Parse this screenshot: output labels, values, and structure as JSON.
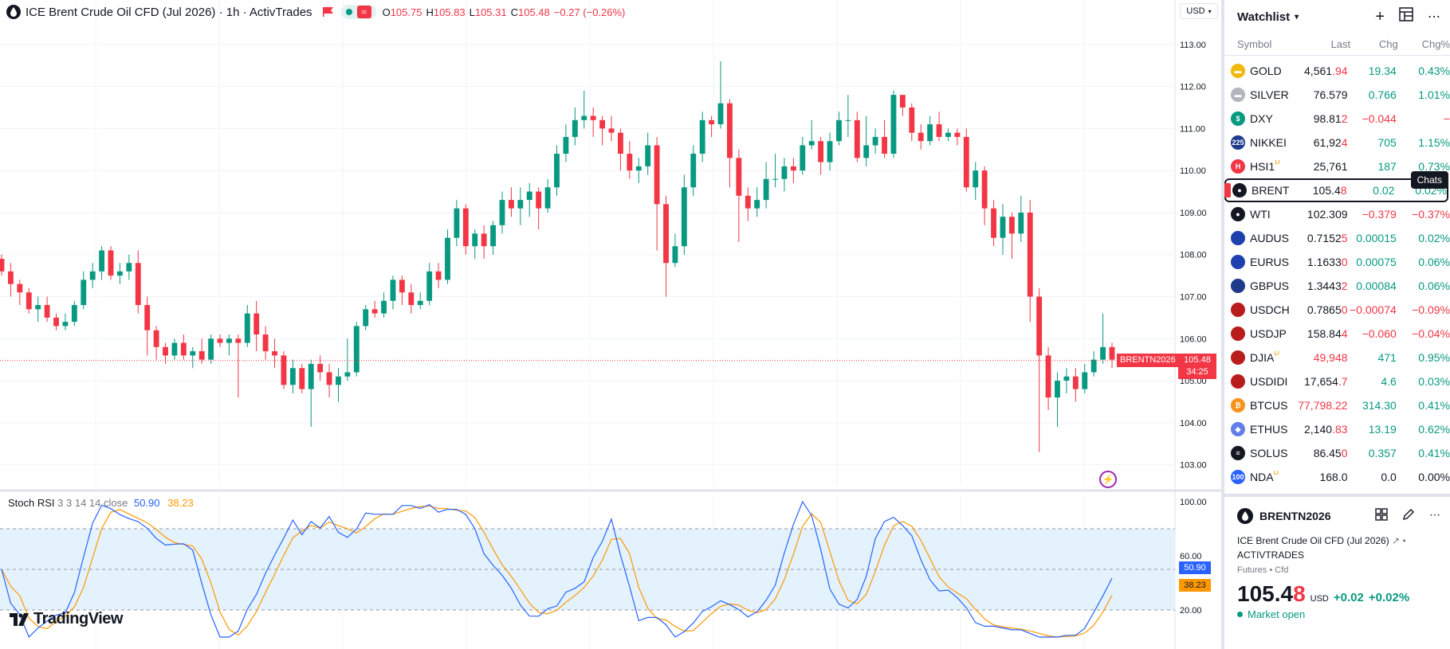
{
  "legend": {
    "title": "ICE Brent Crude Oil CFD (Jul 2026) · 1h · ActivTrades",
    "ohlc": [
      {
        "k": "O",
        "v": "105.75"
      },
      {
        "k": "H",
        "v": "105.83"
      },
      {
        "k": "L",
        "v": "105.31"
      },
      {
        "k": "C",
        "v": "105.48"
      }
    ],
    "change": "−0.27 (−0.26%)",
    "wave_glyph": "≈"
  },
  "currency": "USD",
  "price_axis": [
    "113.00",
    "112.00",
    "111.00",
    "110.00",
    "109.00",
    "108.00",
    "107.00",
    "106.00",
    "105.00",
    "104.00",
    "103.00"
  ],
  "indicator_axis": [
    "100.00",
    "60.00",
    "20.00"
  ],
  "price_tag": {
    "price": "105.48",
    "countdown": "34:25",
    "symbol": "BRENTN2026"
  },
  "indicator": {
    "name": "Stoch RSI",
    "params": "3 3 14 14 close",
    "k": "50.90",
    "d": "38.23"
  },
  "logo": "TradingView",
  "colors": {
    "up": "#089981",
    "down": "#f23645",
    "k_line": "#2962ff",
    "d_line": "#ff9800",
    "band": "#e3f2fd"
  },
  "watchlist": {
    "title": "Watchlist",
    "columns": {
      "symbol": "Symbol",
      "last": "Last",
      "chg": "Chg",
      "pct": "Chg%"
    },
    "tooltip": "Chats",
    "rows": [
      {
        "sym": "GOLD",
        "last_a": "4,561",
        "last_b": ".94",
        "chg": "19.34",
        "pct": "0.43%",
        "dir": "pos",
        "icon": "gold-icon",
        "icolor": "#f0b90b",
        "glyph": "▬"
      },
      {
        "sym": "SILVER",
        "last_a": "76.579",
        "last_b": "",
        "chg": "0.766",
        "pct": "1.01%",
        "dir": "pos",
        "icon": "silver-icon",
        "icolor": "#b2b5be",
        "glyph": "▬"
      },
      {
        "sym": "DXY",
        "last_a": "98.81",
        "last_b": "2",
        "chg": "−0.044",
        "pct": "−",
        "dir": "neg",
        "icon": "dollar-icon",
        "icolor": "#089981",
        "glyph": "$"
      },
      {
        "sym": "NIKKEI",
        "last_a": "61,92",
        "last_b": "4",
        "chg": "705",
        "pct": "1.15%",
        "dir": "pos",
        "icon": "nikkei-icon",
        "icolor": "#1e3a8a",
        "glyph": "225"
      },
      {
        "sym": "HSI1",
        "sup": "D",
        "last_a": "25,761",
        "last_b": "",
        "chg": "187",
        "pct": "0.73%",
        "dir": "pos",
        "icon": "hsi-icon",
        "icolor": "#f23645",
        "glyph": "H"
      },
      {
        "sym": "BRENT",
        "last_a": "105.4",
        "last_b": "8",
        "chg": "0.02",
        "pct": "0.02%",
        "dir": "pos",
        "icon": "oil-drop-icon",
        "icolor": "#131722",
        "glyph": "●",
        "selected": true
      },
      {
        "sym": "WTI",
        "last_a": "102.309",
        "last_b": "",
        "chg": "−0.379",
        "pct": "−0.37%",
        "dir": "neg",
        "icon": "oil-drop-icon",
        "icolor": "#131722",
        "glyph": "●"
      },
      {
        "sym": "AUDUS",
        "last_a": "0.7152",
        "last_b": "5",
        "chg": "0.00015",
        "pct": "0.02%",
        "dir": "pos",
        "icon": "au-flag-icon",
        "icolor": "#1e40af",
        "glyph": ""
      },
      {
        "sym": "EURUS",
        "last_a": "1.1633",
        "last_b": "0",
        "chg": "0.00075",
        "pct": "0.06%",
        "dir": "pos",
        "icon": "eu-flag-icon",
        "icolor": "#1e40af",
        "glyph": ""
      },
      {
        "sym": "GBPUS",
        "last_a": "1.3443",
        "last_b": "2",
        "chg": "0.00084",
        "pct": "0.06%",
        "dir": "pos",
        "icon": "gb-flag-icon",
        "icolor": "#1e3a8a",
        "glyph": ""
      },
      {
        "sym": "USDCH",
        "last_a": "0.7865",
        "last_b": "0",
        "chg": "−0.00074",
        "pct": "−0.09%",
        "dir": "neg",
        "icon": "us-flag-icon",
        "icolor": "#b91c1c",
        "glyph": ""
      },
      {
        "sym": "USDJP",
        "last_a": "158.84",
        "last_b": "4",
        "chg": "−0.060",
        "pct": "−0.04%",
        "dir": "neg",
        "icon": "us-flag-icon",
        "icolor": "#b91c1c",
        "glyph": ""
      },
      {
        "sym": "DJIA",
        "sup": "D",
        "last_a": "49,948",
        "last_b": "",
        "chg": "471",
        "pct": "0.95%",
        "dir": "pos",
        "lastcolor": "neg",
        "icon": "us-flag-icon",
        "icolor": "#b91c1c",
        "glyph": ""
      },
      {
        "sym": "USDIDI",
        "last_a": "17,654",
        "last_b": ".7",
        "chg": "4.6",
        "pct": "0.03%",
        "dir": "pos",
        "icon": "us-flag-icon",
        "icolor": "#b91c1c",
        "glyph": ""
      },
      {
        "sym": "BTCUS",
        "last_a": "77,798.22",
        "last_b": "",
        "chg": "314.30",
        "pct": "0.41%",
        "dir": "pos",
        "lastcolor": "neg",
        "icon": "bitcoin-icon",
        "icolor": "#f7931a",
        "glyph": "₿"
      },
      {
        "sym": "ETHUS",
        "last_a": "2,140",
        "last_b": ".83",
        "chg": "13.19",
        "pct": "0.62%",
        "dir": "pos",
        "icon": "ethereum-icon",
        "icolor": "#627eea",
        "glyph": "◆"
      },
      {
        "sym": "SOLUS",
        "last_a": "86.45",
        "last_b": "0",
        "chg": "0.357",
        "pct": "0.41%",
        "dir": "pos",
        "icon": "solana-icon",
        "icolor": "#131722",
        "glyph": "≡"
      },
      {
        "sym": "NDA",
        "sup": "D",
        "last_a": "168.0",
        "last_b": "",
        "chg": "0.0",
        "pct": "0.00%",
        "dir": "zero",
        "icon": "nda-icon",
        "icolor": "#2962ff",
        "glyph": "100"
      }
    ]
  },
  "details": {
    "symbol": "BRENTN2026",
    "name": "ICE Brent Crude Oil CFD (Jul 2026)",
    "exchange": "ACTIVTRADES",
    "category": "Futures • Cfd",
    "price_a": "105.4",
    "price_b": "8",
    "currency": "USD",
    "change": "+0.02",
    "change_pct": "+0.02%",
    "status": "Market open"
  },
  "chart_data": {
    "type": "candlestick",
    "title": "ICE Brent Crude Oil CFD (Jul 2026) · 1h · ActivTrades",
    "ylim": [
      102.5,
      113.3
    ],
    "candles": [
      [
        107.9,
        107.6,
        108.0,
        107.5
      ],
      [
        107.6,
        107.3,
        107.8,
        107.0
      ],
      [
        107.3,
        107.1,
        107.4,
        106.8
      ],
      [
        107.1,
        106.7,
        107.2,
        106.6
      ],
      [
        106.7,
        106.8,
        107.0,
        106.4
      ],
      [
        106.8,
        106.5,
        107.0,
        106.4
      ],
      [
        106.5,
        106.3,
        106.6,
        106.2
      ],
      [
        106.3,
        106.4,
        106.6,
        106.2
      ],
      [
        106.4,
        106.8,
        106.9,
        106.3
      ],
      [
        106.8,
        107.4,
        107.6,
        106.7
      ],
      [
        107.4,
        107.6,
        107.8,
        107.2
      ],
      [
        107.6,
        108.1,
        108.2,
        107.4
      ],
      [
        108.1,
        107.5,
        108.2,
        107.4
      ],
      [
        107.5,
        107.6,
        107.8,
        107.3
      ],
      [
        107.6,
        107.8,
        108.0,
        107.4
      ],
      [
        107.8,
        106.8,
        108.1,
        106.6
      ],
      [
        106.8,
        106.2,
        107.0,
        105.6
      ],
      [
        106.2,
        105.8,
        106.3,
        105.5
      ],
      [
        105.8,
        105.6,
        105.9,
        105.4
      ],
      [
        105.6,
        105.9,
        106.0,
        105.5
      ],
      [
        105.9,
        105.6,
        106.1,
        105.5
      ],
      [
        105.6,
        105.7,
        105.8,
        105.3
      ],
      [
        105.7,
        105.5,
        106.0,
        105.4
      ],
      [
        105.5,
        106.0,
        106.1,
        105.4
      ],
      [
        106.0,
        105.9,
        106.1,
        105.8
      ],
      [
        105.9,
        106.0,
        106.1,
        105.6
      ],
      [
        106.0,
        105.9,
        106.1,
        104.6
      ],
      [
        105.9,
        106.6,
        106.8,
        105.8
      ],
      [
        106.6,
        106.1,
        106.9,
        105.7
      ],
      [
        106.1,
        105.7,
        106.3,
        105.5
      ],
      [
        105.7,
        105.6,
        106.0,
        105.3
      ],
      [
        105.6,
        104.9,
        105.7,
        104.8
      ],
      [
        104.9,
        105.3,
        105.5,
        104.7
      ],
      [
        105.3,
        104.8,
        105.4,
        104.7
      ],
      [
        104.8,
        105.4,
        105.5,
        103.9
      ],
      [
        105.4,
        105.2,
        105.6,
        105.0
      ],
      [
        105.2,
        104.9,
        105.4,
        104.6
      ],
      [
        104.9,
        105.1,
        105.3,
        104.5
      ],
      [
        105.1,
        105.2,
        106.0,
        105.0
      ],
      [
        105.2,
        106.3,
        106.4,
        105.1
      ],
      [
        106.3,
        106.7,
        106.8,
        106.2
      ],
      [
        106.7,
        106.6,
        106.9,
        106.5
      ],
      [
        106.6,
        106.9,
        107.1,
        106.5
      ],
      [
        106.9,
        107.4,
        107.5,
        106.7
      ],
      [
        107.4,
        107.1,
        107.5,
        106.8
      ],
      [
        107.1,
        106.8,
        107.3,
        106.6
      ],
      [
        106.8,
        106.9,
        107.1,
        106.7
      ],
      [
        106.9,
        107.6,
        107.8,
        106.8
      ],
      [
        107.6,
        107.4,
        107.8,
        107.2
      ],
      [
        107.4,
        108.4,
        108.6,
        107.3
      ],
      [
        108.4,
        109.1,
        109.3,
        108.2
      ],
      [
        109.1,
        108.2,
        109.2,
        108.0
      ],
      [
        108.2,
        108.5,
        108.6,
        107.9
      ],
      [
        108.5,
        108.2,
        108.7,
        107.9
      ],
      [
        108.2,
        108.7,
        108.8,
        108.0
      ],
      [
        108.7,
        109.3,
        109.5,
        108.5
      ],
      [
        109.3,
        109.1,
        109.6,
        108.9
      ],
      [
        109.1,
        109.3,
        109.6,
        108.7
      ],
      [
        109.3,
        109.5,
        109.7,
        108.9
      ],
      [
        109.5,
        109.1,
        109.6,
        108.6
      ],
      [
        109.1,
        109.6,
        109.8,
        109.0
      ],
      [
        109.6,
        110.4,
        110.6,
        109.4
      ],
      [
        110.4,
        110.8,
        111.1,
        110.2
      ],
      [
        110.8,
        111.2,
        111.5,
        110.6
      ],
      [
        111.2,
        111.3,
        111.9,
        111.0
      ],
      [
        111.3,
        111.2,
        111.5,
        110.8
      ],
      [
        111.2,
        111.0,
        111.3,
        110.6
      ],
      [
        111.0,
        110.9,
        111.3,
        110.7
      ],
      [
        110.9,
        110.4,
        111.0,
        110.0
      ],
      [
        110.4,
        110.0,
        110.7,
        109.8
      ],
      [
        110.0,
        110.1,
        110.3,
        109.7
      ],
      [
        110.1,
        110.6,
        110.9,
        109.9
      ],
      [
        110.6,
        109.2,
        110.8,
        108.1
      ],
      [
        109.2,
        107.8,
        109.4,
        107.0
      ],
      [
        107.8,
        108.2,
        108.5,
        107.7
      ],
      [
        108.2,
        109.6,
        109.9,
        108.0
      ],
      [
        109.6,
        110.4,
        110.6,
        109.4
      ],
      [
        110.4,
        111.2,
        111.4,
        110.2
      ],
      [
        111.2,
        111.1,
        111.3,
        110.8
      ],
      [
        111.1,
        111.6,
        112.6,
        111.0
      ],
      [
        111.6,
        110.3,
        111.7,
        109.6
      ],
      [
        110.3,
        109.4,
        110.5,
        108.3
      ],
      [
        109.4,
        109.1,
        109.6,
        108.8
      ],
      [
        109.1,
        109.3,
        109.6,
        108.9
      ],
      [
        109.3,
        109.8,
        110.2,
        109.1
      ],
      [
        109.8,
        109.8,
        110.4,
        109.6
      ],
      [
        109.8,
        110.1,
        110.3,
        109.5
      ],
      [
        110.1,
        110.0,
        110.3,
        109.7
      ],
      [
        110.0,
        110.6,
        110.8,
        109.9
      ],
      [
        110.6,
        110.7,
        111.2,
        110.5
      ],
      [
        110.7,
        110.2,
        110.8,
        109.9
      ],
      [
        110.2,
        110.7,
        110.9,
        110.0
      ],
      [
        110.7,
        111.2,
        111.4,
        110.6
      ],
      [
        111.2,
        111.2,
        111.8,
        110.8
      ],
      [
        111.2,
        110.3,
        111.4,
        110.2
      ],
      [
        110.3,
        110.6,
        111.3,
        110.1
      ],
      [
        110.6,
        110.8,
        111.0,
        110.4
      ],
      [
        110.8,
        110.4,
        111.2,
        110.3
      ],
      [
        110.4,
        111.8,
        111.9,
        110.3
      ],
      [
        111.8,
        111.5,
        111.7,
        111.3
      ],
      [
        111.5,
        110.9,
        111.6,
        110.7
      ],
      [
        110.9,
        110.7,
        111.1,
        110.5
      ],
      [
        110.7,
        111.1,
        111.3,
        110.6
      ],
      [
        111.1,
        110.8,
        111.4,
        110.7
      ],
      [
        110.8,
        110.9,
        111.0,
        110.7
      ],
      [
        110.9,
        110.8,
        111.0,
        110.6
      ],
      [
        110.8,
        109.6,
        111.0,
        109.5
      ],
      [
        109.6,
        110.0,
        110.2,
        109.3
      ],
      [
        110.0,
        109.1,
        110.1,
        108.7
      ],
      [
        109.1,
        108.4,
        109.3,
        108.2
      ],
      [
        108.4,
        108.9,
        109.2,
        108.0
      ],
      [
        108.9,
        108.5,
        109.0,
        107.9
      ],
      [
        108.5,
        109.0,
        109.4,
        108.3
      ],
      [
        109.0,
        107.0,
        109.3,
        106.4
      ],
      [
        107.0,
        105.6,
        107.2,
        103.3
      ],
      [
        105.6,
        104.6,
        105.8,
        104.3
      ],
      [
        104.6,
        105.0,
        105.2,
        103.9
      ],
      [
        105.0,
        105.1,
        105.3,
        104.7
      ],
      [
        105.1,
        104.8,
        105.3,
        104.5
      ],
      [
        104.8,
        105.2,
        105.4,
        104.7
      ],
      [
        105.2,
        105.5,
        105.7,
        105.1
      ],
      [
        105.5,
        105.8,
        106.6,
        105.4
      ],
      [
        105.8,
        105.5,
        105.9,
        105.3
      ]
    ]
  }
}
